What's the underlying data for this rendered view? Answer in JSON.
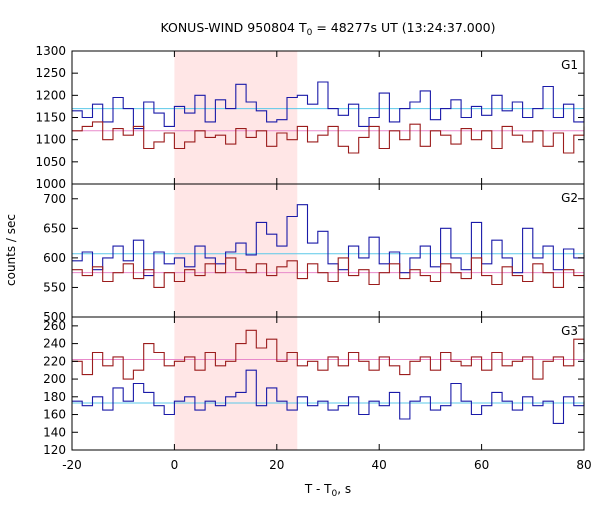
{
  "chart_data": {
    "type": "line",
    "title_parts": {
      "prefix": "KONUS-WIND 950804 T",
      "sub": "0",
      "suffix": " = 48277s UT (13:24:37.000)"
    },
    "xlabel_parts": {
      "prefix": "T - T",
      "sub": "0",
      "suffix": ", s"
    },
    "ylabel": "counts / sec",
    "xlim": [
      -20,
      80
    ],
    "x_ticks": [
      "-20",
      "0",
      "20",
      "40",
      "60",
      "80"
    ],
    "x_tick_values": [
      -20,
      0,
      20,
      40,
      60,
      80
    ],
    "highlight_interval": [
      0,
      24
    ],
    "highlight_color": "#ffe6e6",
    "bin_width": 2,
    "bin_start": -20,
    "panels": [
      {
        "label": "G1",
        "ylim": [
          1000,
          1300
        ],
        "y_ticks": [
          "1000",
          "1050",
          "1100",
          "1150",
          "1200",
          "1250",
          "1300"
        ],
        "y_tick_values": [
          1000,
          1050,
          1100,
          1150,
          1200,
          1250,
          1300
        ],
        "series": [
          {
            "color": "#1a1aa8",
            "values": [
              1165,
              1150,
              1180,
              1140,
              1195,
              1170,
              1125,
              1185,
              1160,
              1130,
              1175,
              1160,
              1200,
              1140,
              1190,
              1170,
              1225,
              1185,
              1165,
              1140,
              1145,
              1195,
              1200,
              1180,
              1230,
              1170,
              1155,
              1180,
              1130,
              1150,
              1205,
              1140,
              1170,
              1185,
              1210,
              1145,
              1170,
              1190,
              1150,
              1175,
              1155,
              1200,
              1165,
              1185,
              1150,
              1170,
              1220,
              1150,
              1180,
              1140,
              1195
            ]
          },
          {
            "color": "#9b1c1c",
            "values": [
              1120,
              1130,
              1140,
              1100,
              1125,
              1110,
              1130,
              1080,
              1095,
              1115,
              1080,
              1095,
              1120,
              1105,
              1110,
              1090,
              1125,
              1105,
              1120,
              1085,
              1115,
              1100,
              1130,
              1095,
              1110,
              1130,
              1085,
              1070,
              1105,
              1130,
              1080,
              1120,
              1100,
              1135,
              1085,
              1120,
              1110,
              1090,
              1125,
              1100,
              1120,
              1080,
              1130,
              1110,
              1095,
              1120,
              1085,
              1115,
              1070,
              1110,
              1130
            ]
          }
        ],
        "levels": [
          {
            "color": "#5bc8e8",
            "value": 1170
          },
          {
            "color": "#e88acb",
            "value": 1120
          }
        ]
      },
      {
        "label": "G2",
        "ylim": [
          500,
          725
        ],
        "y_ticks": [
          "500",
          "550",
          "600",
          "650",
          "700"
        ],
        "y_tick_values": [
          500,
          550,
          600,
          650,
          700
        ],
        "series": [
          {
            "color": "#1a1aa8",
            "values": [
              595,
              610,
              580,
              600,
              620,
              595,
              630,
              570,
              610,
              590,
              600,
              585,
              620,
              600,
              590,
              610,
              625,
              605,
              660,
              640,
              620,
              670,
              690,
              625,
              645,
              590,
              580,
              620,
              600,
              635,
              590,
              610,
              575,
              600,
              620,
              585,
              650,
              600,
              580,
              660,
              590,
              630,
              600,
              575,
              650,
              600,
              620,
              580,
              615,
              600,
              605
            ]
          },
          {
            "color": "#9b1c1c",
            "values": [
              580,
              570,
              585,
              560,
              575,
              590,
              565,
              580,
              550,
              575,
              560,
              580,
              570,
              590,
              575,
              600,
              580,
              575,
              590,
              570,
              585,
              595,
              565,
              590,
              575,
              560,
              600,
              570,
              580,
              555,
              575,
              590,
              565,
              580,
              570,
              560,
              590,
              575,
              565,
              600,
              570,
              555,
              585,
              570,
              560,
              590,
              575,
              550,
              580,
              570,
              560
            ]
          }
        ],
        "levels": [
          {
            "color": "#5bc8e8",
            "value": 607
          },
          {
            "color": "#e88acb",
            "value": 575
          }
        ]
      },
      {
        "label": "G3",
        "ylim": [
          120,
          270
        ],
        "y_ticks": [
          "120",
          "140",
          "160",
          "180",
          "200",
          "220",
          "240",
          "260"
        ],
        "y_tick_values": [
          120,
          140,
          160,
          180,
          200,
          220,
          240,
          260
        ],
        "series": [
          {
            "color": "#1a1aa8",
            "values": [
              175,
              170,
              180,
              165,
              190,
              175,
              195,
              185,
              170,
              160,
              175,
              180,
              165,
              175,
              170,
              180,
              185,
              210,
              170,
              190,
              175,
              165,
              180,
              170,
              175,
              165,
              170,
              180,
              160,
              175,
              170,
              185,
              155,
              175,
              180,
              165,
              170,
              195,
              175,
              160,
              170,
              185,
              175,
              165,
              180,
              170,
              175,
              150,
              180,
              170,
              175
            ]
          },
          {
            "color": "#9b1c1c",
            "values": [
              220,
              205,
              230,
              215,
              225,
              200,
              210,
              240,
              230,
              215,
              220,
              225,
              210,
              230,
              215,
              220,
              240,
              255,
              235,
              245,
              220,
              230,
              215,
              220,
              210,
              225,
              215,
              230,
              220,
              210,
              225,
              215,
              205,
              220,
              225,
              210,
              230,
              220,
              215,
              225,
              210,
              230,
              215,
              220,
              225,
              200,
              220,
              225,
              215,
              245,
              230
            ]
          }
        ],
        "levels": [
          {
            "color": "#5bc8e8",
            "value": 173
          },
          {
            "color": "#e88acb",
            "value": 222
          }
        ]
      }
    ]
  }
}
